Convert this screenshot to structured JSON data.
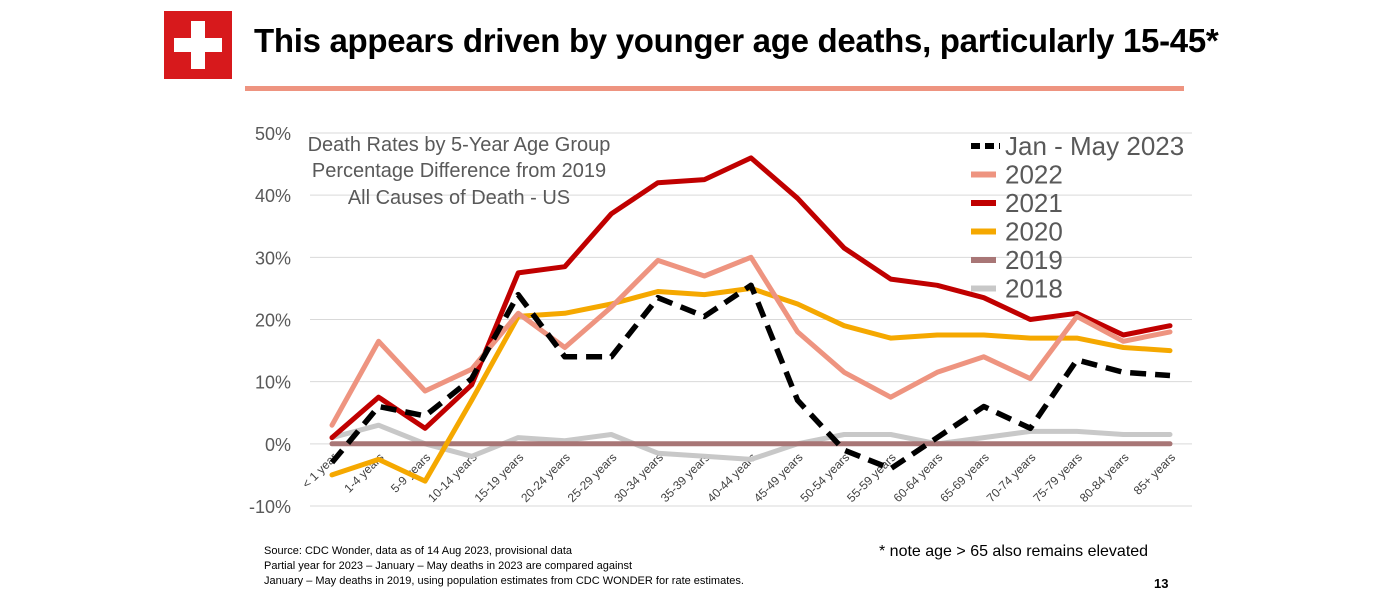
{
  "header": {
    "title": "This appears driven by younger age deaths, particularly 15-45*",
    "logo_color": "#d7191c",
    "accent_color": "#ee9480"
  },
  "chart_data": {
    "type": "line",
    "title_lines": [
      "Death Rates by 5-Year Age Group",
      "Percentage Difference from 2019",
      "All Causes of Death - US"
    ],
    "categories": [
      "< 1 year",
      "1-4 years",
      "5-9 years",
      "10-14 years",
      "15-19 years",
      "20-24 years",
      "25-29 years",
      "30-34 years",
      "35-39 years",
      "40-44 years",
      "45-49 years",
      "50-54 years",
      "55-59 years",
      "60-64 years",
      "65-69 years",
      "70-74 years",
      "75-79 years",
      "80-84 years",
      "85+ years"
    ],
    "y_ticks": [
      "50%",
      "40%",
      "30%",
      "20%",
      "10%",
      "0%",
      "-10%"
    ],
    "ylim": [
      -10,
      50
    ],
    "grid": true,
    "legend_position": "top-right",
    "series": [
      {
        "name": "Jan - May 2023",
        "color": "#000000",
        "dashed": true,
        "values": [
          -3,
          6,
          4.5,
          10.5,
          24,
          14,
          14,
          23.5,
          20.5,
          25.5,
          7,
          -1,
          -4,
          1,
          6,
          2.5,
          13.5,
          11.5,
          11
        ]
      },
      {
        "name": "2022",
        "color": "#ee9480",
        "dashed": false,
        "values": [
          3,
          16.5,
          8.5,
          12,
          21,
          15.5,
          22,
          29.5,
          27,
          30,
          18,
          11.5,
          7.5,
          11.5,
          14,
          10.5,
          20.5,
          16.5,
          18
        ]
      },
      {
        "name": "2021",
        "color": "#c00000",
        "dashed": false,
        "values": [
          1,
          7.5,
          2.5,
          9.5,
          27.5,
          28.5,
          37,
          42,
          42.5,
          46,
          39.5,
          31.5,
          26.5,
          25.5,
          23.5,
          20,
          21,
          17.5,
          19
        ]
      },
      {
        "name": "2020",
        "color": "#f5a800",
        "dashed": false,
        "values": [
          -5,
          -2.5,
          -6,
          7,
          20.5,
          21,
          22.5,
          24.5,
          24,
          25,
          22.5,
          19,
          17,
          17.5,
          17.5,
          17,
          17,
          15.5,
          15
        ]
      },
      {
        "name": "2019",
        "color": "#a87676",
        "dashed": false,
        "values": [
          0,
          0,
          0,
          0,
          0,
          0,
          0,
          0,
          0,
          0,
          0,
          0,
          0,
          0,
          0,
          0,
          0,
          0,
          0
        ]
      },
      {
        "name": "2018",
        "color": "#c8c8c8",
        "dashed": false,
        "values": [
          1,
          3,
          0,
          -2,
          1,
          0.5,
          1.5,
          -1.5,
          -2,
          -2.5,
          0,
          1.5,
          1.5,
          0,
          1,
          2,
          2,
          1.5,
          1.5
        ]
      }
    ]
  },
  "footer": {
    "source_lines": [
      "Source: CDC Wonder, data as of 14 Aug 2023, provisional data",
      "Partial year for 2023 – January – May deaths in 2023 are compared against",
      "January – May deaths in 2019, using population estimates from CDC WONDER for rate estimates."
    ],
    "note": "* note age > 65 also remains elevated",
    "page_number": "13"
  }
}
